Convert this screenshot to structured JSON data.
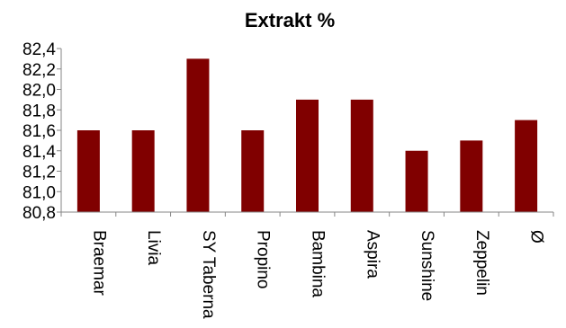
{
  "chart_data": {
    "type": "bar",
    "title": "Extrakt %",
    "xlabel": "",
    "ylabel": "",
    "categories": [
      "Braemar",
      "Livia",
      "SY Taberna",
      "Propino",
      "Bambina",
      "Aspira",
      "Sunshine",
      "Zeppelin",
      "Ø"
    ],
    "values": [
      81.6,
      81.6,
      82.3,
      81.6,
      81.9,
      81.9,
      81.4,
      81.5,
      81.7
    ],
    "ylim": [
      80.8,
      82.4
    ],
    "yticks": [
      "80,8",
      "81,0",
      "81,2",
      "81,4",
      "81,6",
      "81,8",
      "82,0",
      "82,2",
      "82,4"
    ],
    "grid": false,
    "legend": "none",
    "bar_color": "#800000"
  }
}
